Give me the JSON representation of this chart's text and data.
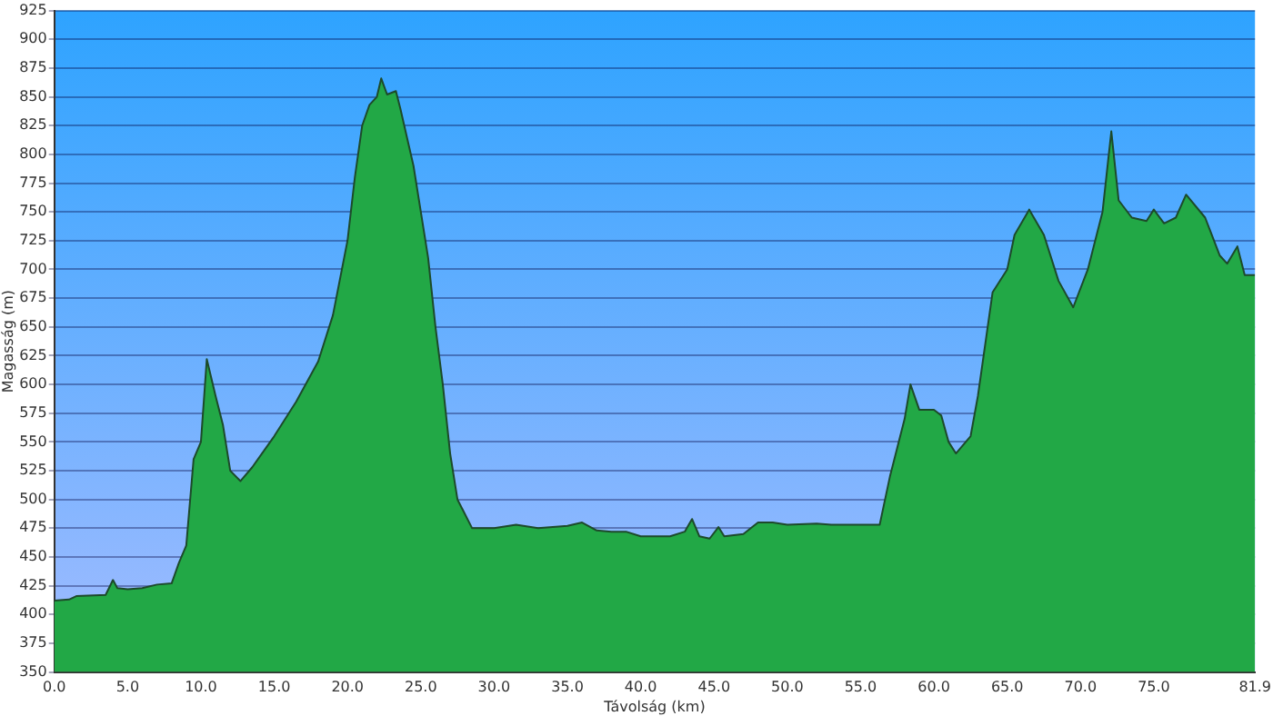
{
  "chart_data": {
    "type": "area",
    "xlabel": "Távolság (km)",
    "ylabel": "Magasság (m)",
    "x": [
      0,
      1,
      1.5,
      3.5,
      4,
      4.3,
      5,
      6,
      7,
      8,
      8.5,
      9,
      9.5,
      10,
      10.4,
      11,
      11.5,
      12,
      12.7,
      13.5,
      15,
      16.5,
      18,
      19,
      20,
      20.5,
      21,
      21.5,
      22,
      22.3,
      22.7,
      23.3,
      23.6,
      24.5,
      25.5,
      26,
      26.5,
      27,
      27.5,
      28.5,
      30,
      31.5,
      33,
      35,
      36,
      37,
      38,
      39,
      40,
      42,
      43,
      43.5,
      44,
      44.7,
      45.3,
      45.7,
      47,
      48,
      49,
      50,
      52,
      53,
      56.3,
      57,
      58,
      58.4,
      59,
      60,
      60.5,
      61,
      61.5,
      62.5,
      63,
      64,
      65,
      65.5,
      66.5,
      67.5,
      68.5,
      69.5,
      70.5,
      71.5,
      72.1,
      72.6,
      73.5,
      74.5,
      75,
      75.7,
      76.5,
      77.2,
      78.5,
      79.5,
      80,
      80.7,
      81.2,
      81.9
    ],
    "series": [
      {
        "color": "#22a846",
        "values": [
          412,
          413,
          416,
          417,
          430,
          423,
          422,
          423,
          426,
          427,
          445,
          460,
          535,
          550,
          622,
          590,
          565,
          525,
          516,
          528,
          555,
          585,
          620,
          660,
          725,
          780,
          825,
          843,
          850,
          866,
          852,
          855,
          840,
          790,
          710,
          650,
          600,
          540,
          500,
          475,
          475,
          478,
          475,
          477,
          480,
          473,
          472,
          472,
          468,
          468,
          472,
          483,
          468,
          466,
          476,
          468,
          470,
          480,
          480,
          478,
          479,
          478,
          478,
          520,
          570,
          600,
          578,
          578,
          573,
          550,
          540,
          555,
          590,
          680,
          700,
          730,
          752,
          730,
          690,
          667,
          700,
          750,
          820,
          760,
          745,
          742,
          752,
          740,
          745,
          765,
          745,
          712,
          705,
          720,
          695,
          695
        ]
      }
    ],
    "xlim": [
      0,
      81.9
    ],
    "xticks": [
      {
        "value": 0,
        "label": "0.0"
      },
      {
        "value": 5,
        "label": "5.0"
      },
      {
        "value": 10,
        "label": "10.0"
      },
      {
        "value": 15,
        "label": "15.0"
      },
      {
        "value": 20,
        "label": "20.0"
      },
      {
        "value": 25,
        "label": "25.0"
      },
      {
        "value": 30,
        "label": "30.0"
      },
      {
        "value": 35,
        "label": "35.0"
      },
      {
        "value": 40,
        "label": "40.0"
      },
      {
        "value": 45,
        "label": "45.0"
      },
      {
        "value": 50,
        "label": "50.0"
      },
      {
        "value": 55,
        "label": "55.0"
      },
      {
        "value": 60,
        "label": "60.0"
      },
      {
        "value": 65,
        "label": "65.0"
      },
      {
        "value": 70,
        "label": "70.0"
      },
      {
        "value": 75,
        "label": "75.0"
      },
      {
        "value": 81.9,
        "label": "81.9"
      }
    ],
    "ylim": [
      350,
      925
    ],
    "yticks": [
      350,
      375,
      400,
      425,
      450,
      475,
      500,
      525,
      550,
      575,
      600,
      625,
      650,
      675,
      700,
      725,
      750,
      775,
      800,
      825,
      850,
      875,
      900,
      925
    ],
    "grid": "y",
    "marker": "none",
    "line_style": "solid"
  }
}
